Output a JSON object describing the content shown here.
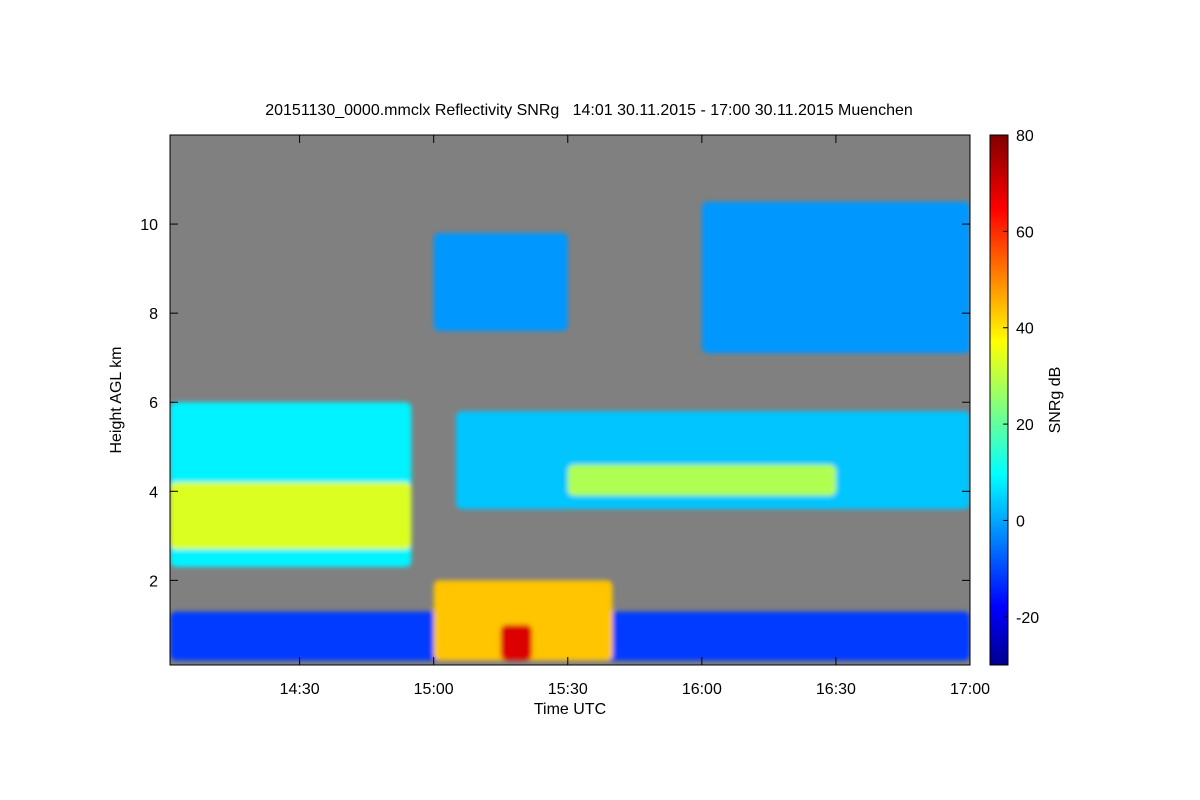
{
  "chart_data": {
    "type": "heatmap",
    "title": "20151130_0000.mmclx Reflectivity SNRg   14:01 30.11.2015 - 17:00 30.11.2015 Muenchen",
    "xlabel": "Time UTC",
    "ylabel": "Height AGL km",
    "xlim": [
      "14:01",
      "17:00"
    ],
    "ylim": [
      0.1,
      12.0
    ],
    "x_ticks": [
      "14:30",
      "15:00",
      "15:30",
      "16:00",
      "16:30",
      "17:00"
    ],
    "y_ticks": [
      "2",
      "4",
      "6",
      "8",
      "10"
    ],
    "colorbar": {
      "label": "SNRg dB",
      "range": [
        -30,
        80
      ],
      "ticks": [
        "-20",
        "0",
        "20",
        "40",
        "60",
        "80"
      ]
    },
    "background_color": "#808080",
    "colormap": "jet",
    "cloud_layers": [
      {
        "time_start": "14:01",
        "time_end": "17:00",
        "base_km": 0.2,
        "top_km": 1.3,
        "snr_db": -10
      },
      {
        "time_start": "15:00",
        "time_end": "15:40",
        "base_km": 0.2,
        "top_km": 2.0,
        "snr_db": 45
      },
      {
        "time_start": "15:15",
        "time_end": "15:22",
        "base_km": 0.2,
        "top_km": 1.0,
        "snr_db": 70
      },
      {
        "time_start": "14:01",
        "time_end": "14:55",
        "base_km": 2.3,
        "top_km": 6.0,
        "snr_db": 10
      },
      {
        "time_start": "14:01",
        "time_end": "14:55",
        "base_km": 2.7,
        "top_km": 4.2,
        "snr_db": 35
      },
      {
        "time_start": "15:05",
        "time_end": "17:00",
        "base_km": 3.6,
        "top_km": 5.8,
        "snr_db": 5
      },
      {
        "time_start": "15:30",
        "time_end": "16:30",
        "base_km": 3.9,
        "top_km": 4.6,
        "snr_db": 30
      },
      {
        "time_start": "15:00",
        "time_end": "15:30",
        "base_km": 7.6,
        "top_km": 9.8,
        "snr_db": 0
      },
      {
        "time_start": "16:00",
        "time_end": "17:00",
        "base_km": 7.1,
        "top_km": 10.5,
        "snr_db": 0
      }
    ]
  }
}
